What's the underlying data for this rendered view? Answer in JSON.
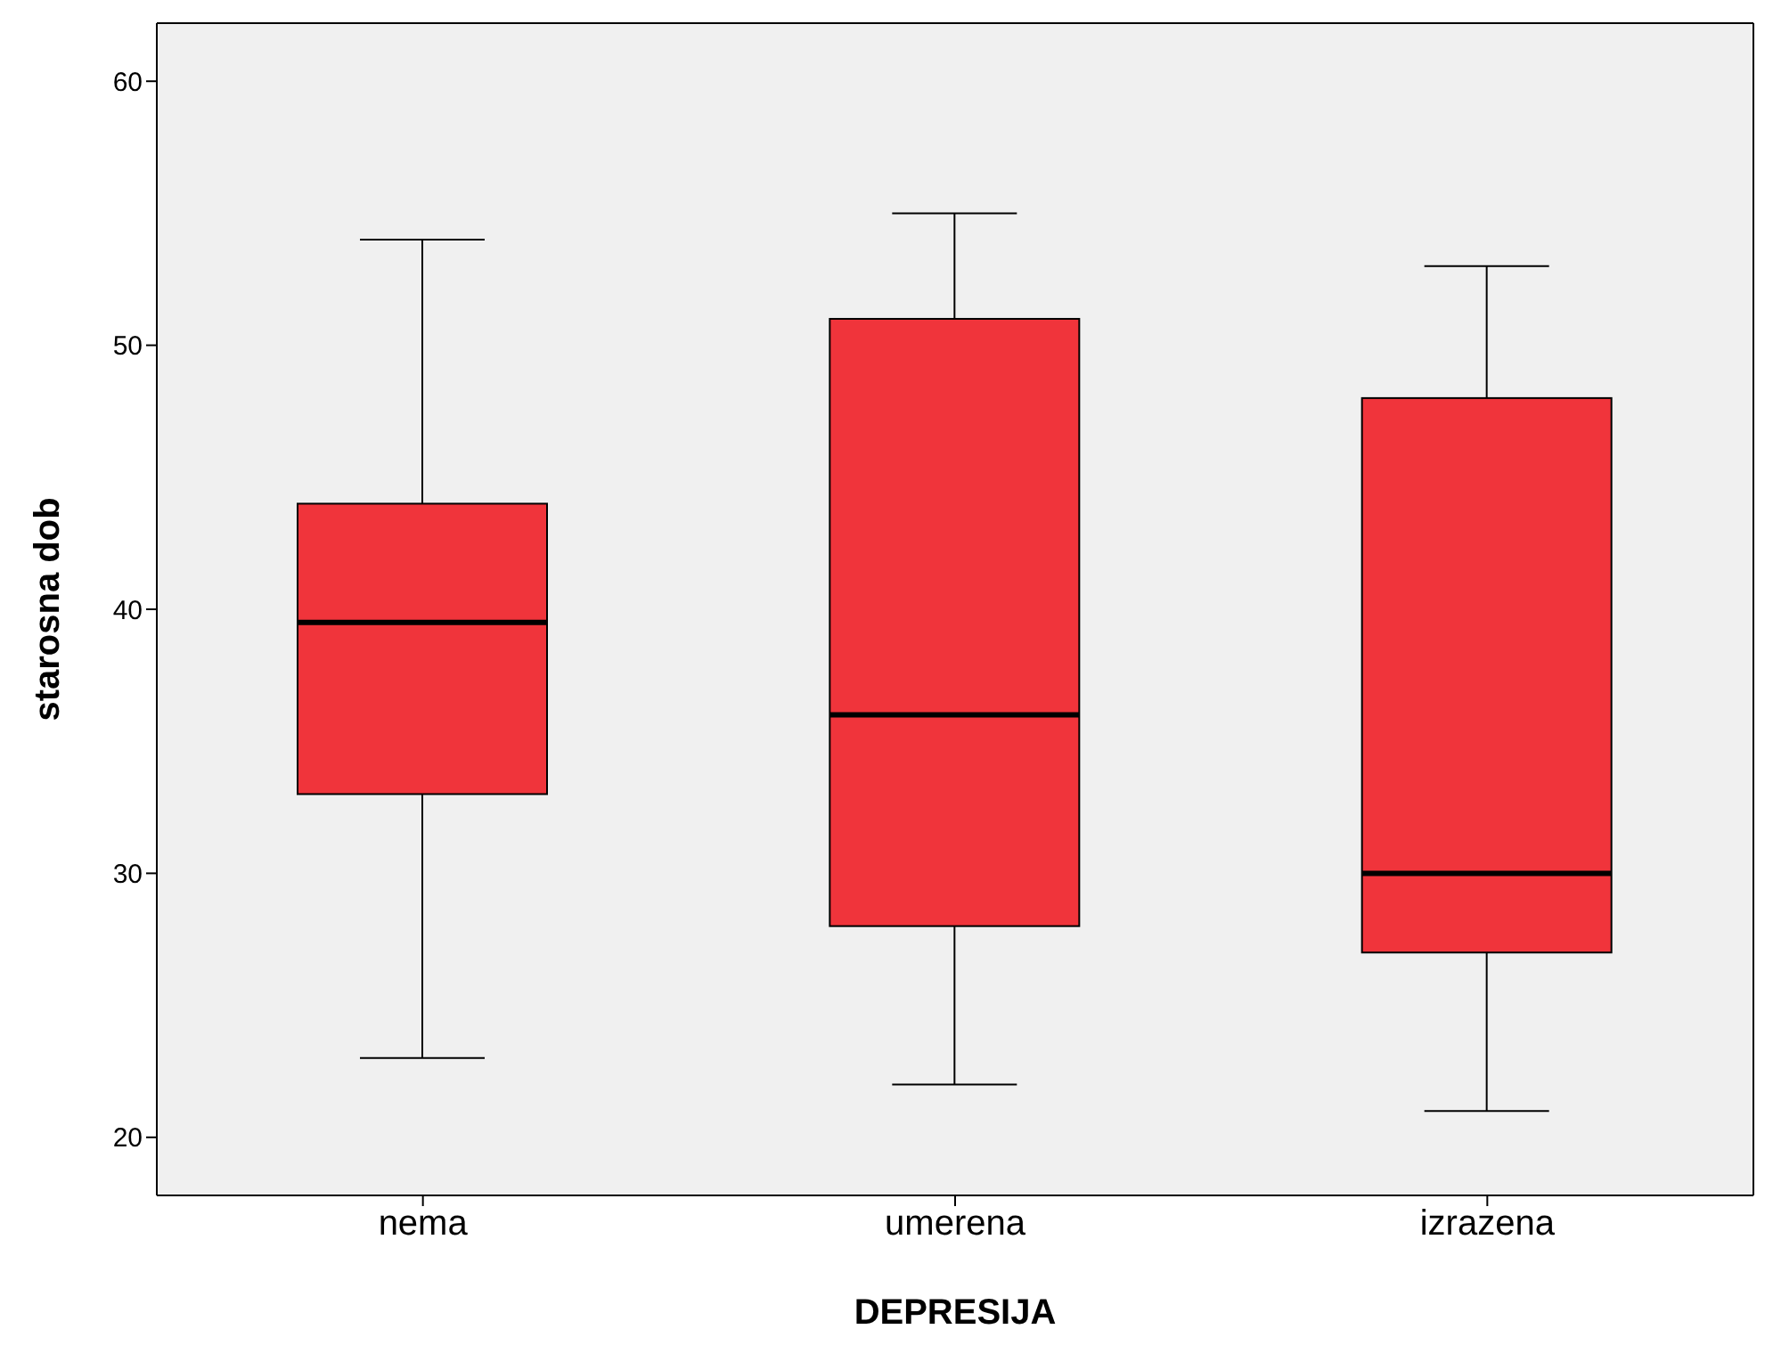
{
  "chart_data": {
    "type": "box",
    "xlabel": "DEPRESIJA",
    "ylabel": "starosna dob",
    "categories": [
      "nema",
      "umerena",
      "izrazena"
    ],
    "series": [
      {
        "color": "#f0343b",
        "boxes": [
          {
            "low": 23,
            "q1": 33,
            "median": 39.5,
            "q3": 44,
            "high": 54
          },
          {
            "low": 22,
            "q1": 28,
            "median": 36,
            "q3": 51,
            "high": 55
          },
          {
            "low": 21,
            "q1": 27,
            "median": 30,
            "q3": 48,
            "high": 53
          }
        ]
      }
    ],
    "ylim": [
      17.8,
      62.2
    ],
    "yticks": [
      20,
      30,
      40,
      50,
      60
    ],
    "grid": false
  }
}
